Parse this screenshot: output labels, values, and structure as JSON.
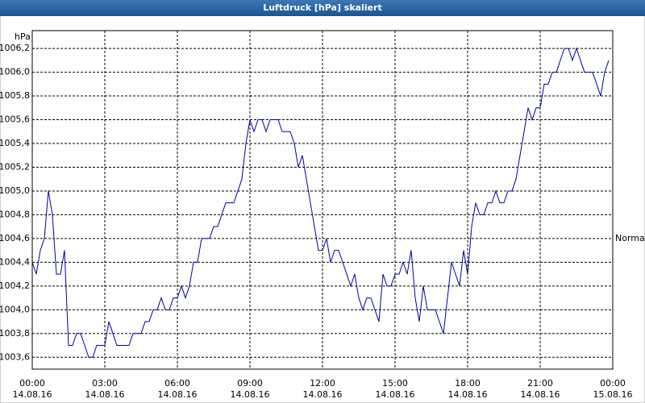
{
  "chart_data": {
    "type": "line",
    "title": "Luftdruck [hPa] skaliert",
    "y_axis_label": "hPa",
    "annotation": {
      "text": "Normal",
      "value": 1004.6
    },
    "color": "#0000a0",
    "grid": true,
    "x": [
      0,
      10,
      20,
      30,
      40,
      50,
      60,
      70,
      80,
      90,
      100,
      110,
      120,
      130,
      140,
      150,
      160,
      170,
      180,
      190,
      200,
      210,
      220,
      230,
      240,
      250,
      260,
      270,
      280,
      290,
      300,
      310,
      320,
      330,
      340,
      350,
      360,
      370,
      380,
      390,
      400,
      410,
      420,
      430,
      440,
      450,
      460,
      470,
      480,
      490,
      500,
      510,
      520,
      530,
      540,
      550,
      560,
      570,
      580,
      590,
      600,
      610,
      620,
      630,
      640,
      650,
      660,
      670,
      680,
      690,
      700,
      710,
      720,
      730,
      740,
      750,
      760,
      770,
      780,
      790,
      800,
      810,
      820,
      830,
      840,
      850,
      860,
      870,
      880,
      890,
      900,
      910,
      920,
      930,
      940,
      950,
      960,
      970,
      980,
      990,
      1000,
      1010,
      1020,
      1030,
      1040,
      1050,
      1060,
      1070,
      1080,
      1090,
      1100,
      1110,
      1120,
      1130,
      1140,
      1150,
      1160,
      1170,
      1180,
      1190,
      1200,
      1210,
      1220,
      1230,
      1240,
      1250,
      1260,
      1270,
      1280,
      1290,
      1300,
      1310,
      1320,
      1330,
      1340,
      1350,
      1360,
      1370,
      1380,
      1390,
      1400,
      1410,
      1420,
      1430
    ],
    "values": [
      1004.4,
      1004.3,
      1004.5,
      1004.6,
      1005.0,
      1004.8,
      1004.3,
      1004.3,
      1004.5,
      1003.7,
      1003.7,
      1003.8,
      1003.8,
      1003.7,
      1003.6,
      1003.6,
      1003.7,
      1003.7,
      1003.7,
      1003.9,
      1003.8,
      1003.7,
      1003.7,
      1003.7,
      1003.7,
      1003.8,
      1003.8,
      1003.8,
      1003.9,
      1003.9,
      1004.0,
      1004.0,
      1004.1,
      1004.0,
      1004.0,
      1004.1,
      1004.1,
      1004.2,
      1004.1,
      1004.2,
      1004.4,
      1004.4,
      1004.6,
      1004.6,
      1004.6,
      1004.7,
      1004.7,
      1004.8,
      1004.9,
      1004.9,
      1004.9,
      1005.0,
      1005.1,
      1005.4,
      1005.6,
      1005.5,
      1005.6,
      1005.6,
      1005.5,
      1005.6,
      1005.6,
      1005.6,
      1005.5,
      1005.5,
      1005.5,
      1005.4,
      1005.2,
      1005.3,
      1005.1,
      1004.9,
      1004.7,
      1004.5,
      1004.5,
      1004.6,
      1004.4,
      1004.5,
      1004.5,
      1004.4,
      1004.3,
      1004.2,
      1004.3,
      1004.1,
      1004.0,
      1004.1,
      1004.1,
      1004.0,
      1003.9,
      1004.3,
      1004.2,
      1004.2,
      1004.3,
      1004.3,
      1004.4,
      1004.3,
      1004.5,
      1004.1,
      1003.9,
      1004.2,
      1004.0,
      1004.0,
      1004.0,
      1003.9,
      1003.8,
      1004.1,
      1004.4,
      1004.3,
      1004.2,
      1004.5,
      1004.3,
      1004.7,
      1004.9,
      1004.8,
      1004.8,
      1004.9,
      1004.9,
      1005.0,
      1004.9,
      1004.9,
      1005.0,
      1005.0,
      1005.1,
      1005.3,
      1005.5,
      1005.7,
      1005.6,
      1005.7,
      1005.7,
      1005.9,
      1005.9,
      1006.0,
      1006.0,
      1006.1,
      1006.2,
      1006.2,
      1006.1,
      1006.2,
      1006.1,
      1006.0,
      1006.0,
      1006.0,
      1005.9,
      1005.8,
      1006.0,
      1006.1
    ],
    "xlim": [
      0,
      1440
    ],
    "xticks": [
      {
        "value": 0,
        "label": "00:00"
      },
      {
        "value": 180,
        "label": "03:00"
      },
      {
        "value": 360,
        "label": "06:00"
      },
      {
        "value": 540,
        "label": "09:00"
      },
      {
        "value": 720,
        "label": "12:00"
      },
      {
        "value": 900,
        "label": "15:00"
      },
      {
        "value": 1080,
        "label": "18:00"
      },
      {
        "value": 1260,
        "label": "21:00"
      },
      {
        "value": 1440,
        "label": "00:00"
      }
    ],
    "xtick_dates": [
      "14.08.16",
      "14.08.16",
      "14.08.16",
      "14.08.16",
      "14.08.16",
      "14.08.16",
      "14.08.16",
      "14.08.16",
      "15.08.16"
    ],
    "ylim": [
      1003.5,
      1006.35
    ],
    "yticks": [
      {
        "value": 1003.6,
        "label": "1003,6"
      },
      {
        "value": 1003.8,
        "label": "1003,8"
      },
      {
        "value": 1004.0,
        "label": "1004,0"
      },
      {
        "value": 1004.2,
        "label": "1004,2"
      },
      {
        "value": 1004.4,
        "label": "1004,4"
      },
      {
        "value": 1004.6,
        "label": "1004,6"
      },
      {
        "value": 1004.8,
        "label": "1004,8"
      },
      {
        "value": 1005.0,
        "label": "1005,0"
      },
      {
        "value": 1005.2,
        "label": "1005,2"
      },
      {
        "value": 1005.4,
        "label": "1005,4"
      },
      {
        "value": 1005.6,
        "label": "1005,6"
      },
      {
        "value": 1005.8,
        "label": "1005,8"
      },
      {
        "value": 1006.0,
        "label": "1006,0"
      },
      {
        "value": 1006.2,
        "label": "1006,2"
      }
    ]
  }
}
